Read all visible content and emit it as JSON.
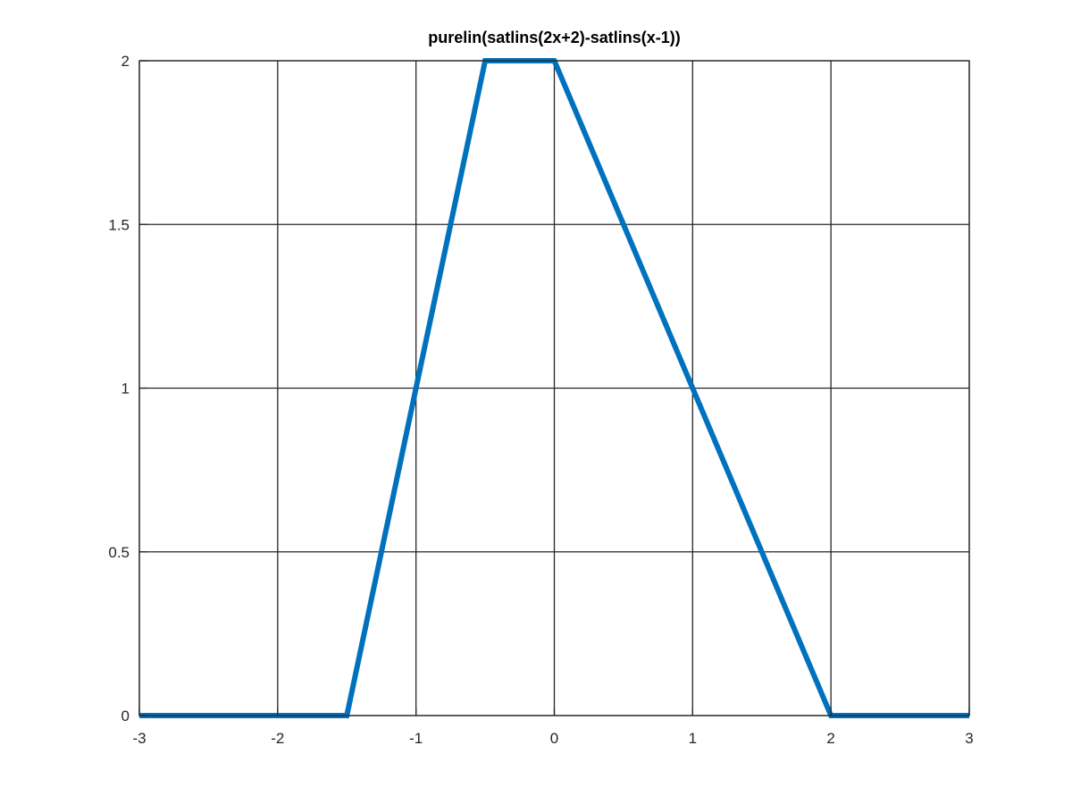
{
  "chart_data": {
    "type": "line",
    "title": "purelin(satlins(2x+2)-satlins(x-1))",
    "xlabel": "",
    "ylabel": "",
    "xlim": [
      -3,
      3
    ],
    "ylim": [
      0,
      2
    ],
    "xticks": [
      -3,
      -2,
      -1,
      0,
      1,
      2,
      3
    ],
    "yticks": [
      0,
      0.5,
      1,
      1.5,
      2
    ],
    "xtick_labels": [
      "-3",
      "-2",
      "-1",
      "0",
      "1",
      "2",
      "3"
    ],
    "ytick_labels": [
      "0",
      "0.5",
      "1",
      "1.5",
      "2"
    ],
    "grid": true,
    "series": [
      {
        "x": [
          -3,
          -1.5,
          -0.5,
          0,
          2,
          3
        ],
        "y": [
          0,
          0,
          2,
          2,
          0,
          0
        ],
        "color": "#0072BD"
      }
    ]
  }
}
